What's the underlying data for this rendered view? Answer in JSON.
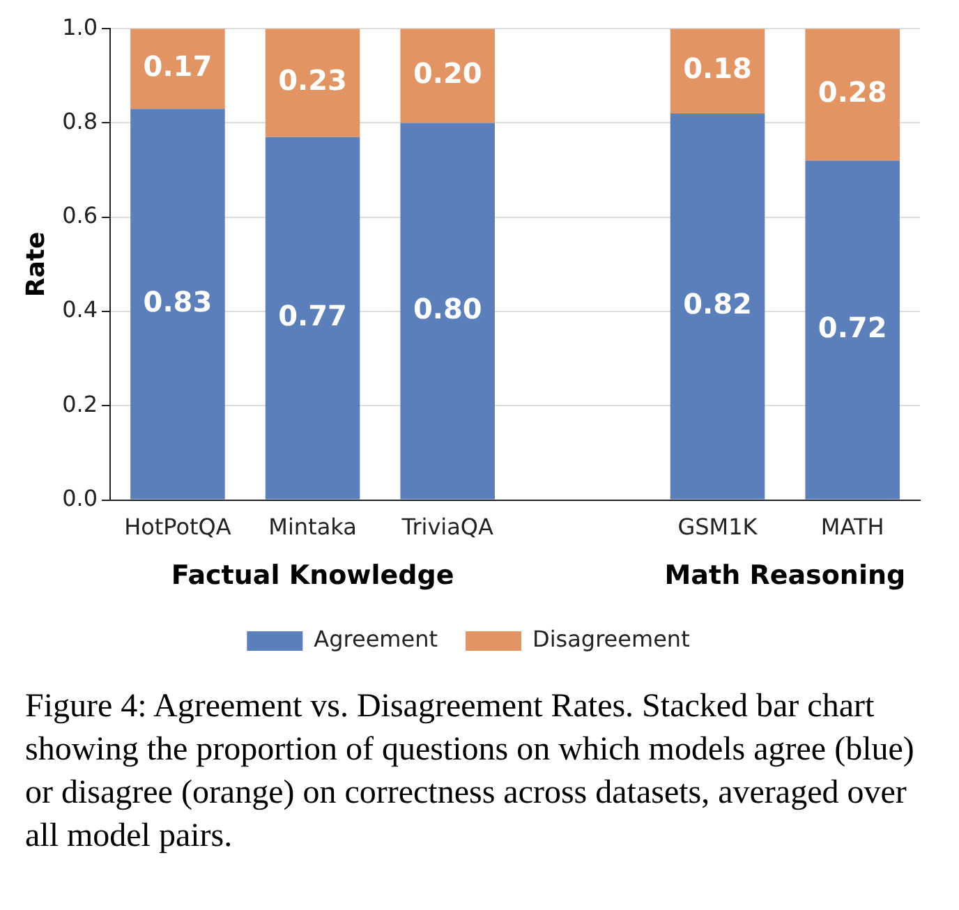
{
  "chart_data": {
    "type": "bar",
    "stacked": true,
    "ylabel": "Rate",
    "categories": [
      "HotPotQA",
      "Mintaka",
      "TriviaQA",
      null,
      "GSM1K",
      "MATH"
    ],
    "series": [
      {
        "name": "Agreement",
        "color": "#5b7fba",
        "values": [
          0.83,
          0.77,
          0.8,
          null,
          0.82,
          0.72
        ],
        "value_labels": [
          "0.83",
          "0.77",
          "0.80",
          null,
          "0.82",
          "0.72"
        ]
      },
      {
        "name": "Disagreement",
        "color": "#e39463",
        "values": [
          0.17,
          0.23,
          0.2,
          null,
          0.18,
          0.28
        ],
        "value_labels": [
          "0.17",
          "0.23",
          "0.20",
          null,
          "0.18",
          "0.28"
        ]
      }
    ],
    "ylim": [
      0,
      1
    ],
    "yticks": [
      {
        "value": 0,
        "label": "0.0"
      },
      {
        "value": 0.2,
        "label": "0.2"
      },
      {
        "value": 0.4,
        "label": "0.4"
      },
      {
        "value": 0.6,
        "label": "0.6"
      },
      {
        "value": 0.8,
        "label": "0.8"
      },
      {
        "value": 1,
        "label": "1.0"
      }
    ],
    "grid": "y",
    "legend": "bottom",
    "annotations": [
      "Factual Knowledge",
      "Math Reasoning",
      "Figure 4: Agreement vs. Disagreement Rates. Stacked bar chart showing the proportion of questions on which models agree (blue) or disagree (orange) on correctness across datasets, averaged over all model pairs."
    ]
  }
}
